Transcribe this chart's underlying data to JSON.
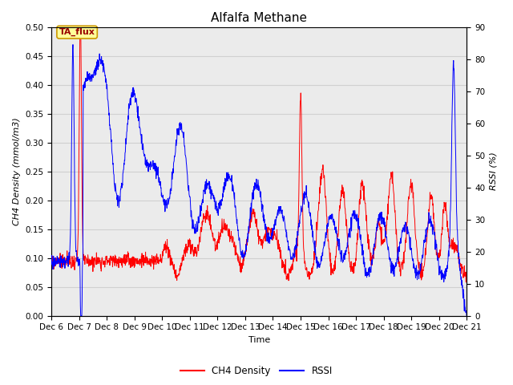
{
  "title": "Alfalfa Methane",
  "xlabel": "Time",
  "ylabel_left": "CH4 Density (mmol/m3)",
  "ylabel_right": "RSSI (%)",
  "annotation_text": "TA_flux",
  "annotation_bg": "#ffff99",
  "annotation_border": "#cc9900",
  "left_ylim": [
    0.0,
    0.5
  ],
  "right_ylim": [
    0,
    90
  ],
  "left_yticks": [
    0.0,
    0.05,
    0.1,
    0.15,
    0.2,
    0.25,
    0.3,
    0.35,
    0.4,
    0.45,
    0.5
  ],
  "right_yticks": [
    0,
    10,
    20,
    30,
    40,
    50,
    60,
    70,
    80,
    90
  ],
  "grid_color": "#d0d0d0",
  "background_color": "#ebebeb",
  "ch4_color": "red",
  "rssi_color": "blue",
  "title_fontsize": 11,
  "label_fontsize": 8,
  "tick_fontsize": 7.5,
  "xtick_labels": [
    "Dec 6",
    "Dec 7",
    "Dec 8",
    "Dec 9",
    "Dec 10",
    "Dec 11",
    "Dec 12",
    "Dec 13",
    "Dec 14",
    "Dec 15",
    "Dec 16",
    "Dec 17",
    "Dec 18",
    "Dec 19",
    "Dec 20",
    "Dec 21"
  ],
  "n_points": 1500
}
